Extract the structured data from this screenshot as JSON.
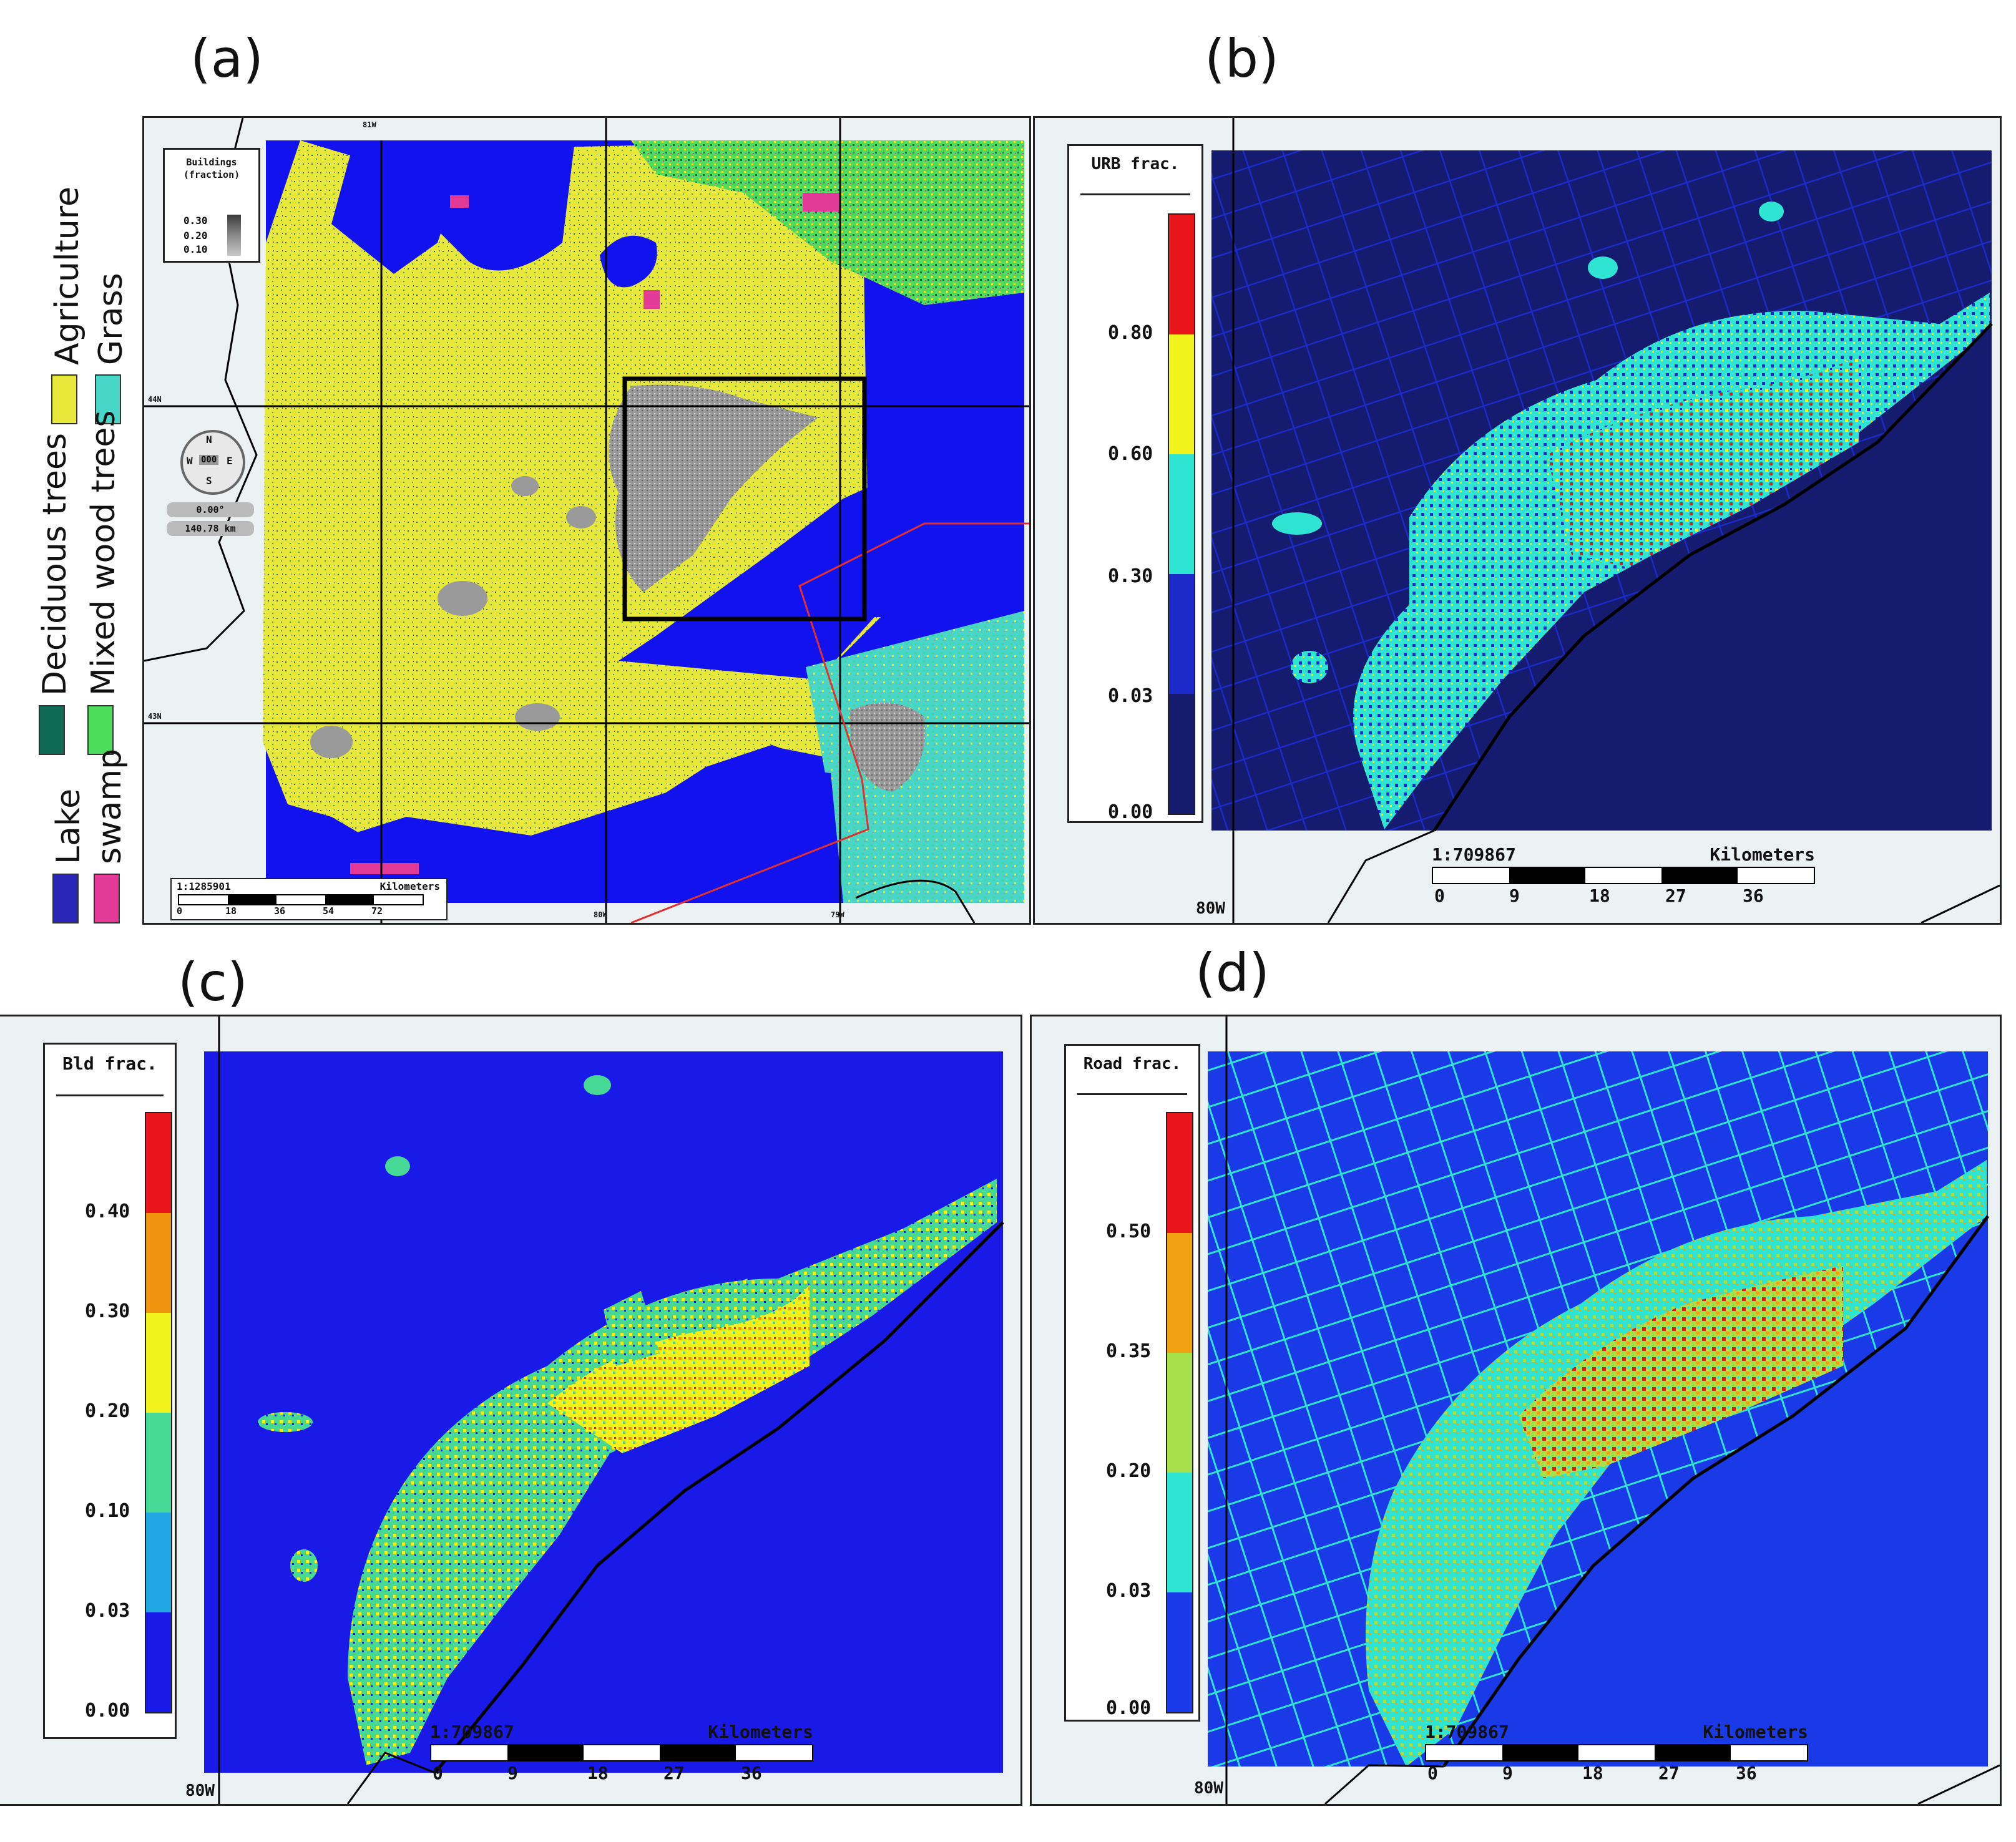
{
  "panels": {
    "a": {
      "label": "(a)",
      "legend_title": "Buildings (fraction)",
      "building_ticks": [
        "0.30",
        "0.20",
        "0.10"
      ],
      "compass": {
        "n": "N",
        "s": "S",
        "e": "E",
        "w": "W",
        "center": "000",
        "angle": "0.00°",
        "distance": "140.78 km"
      },
      "scale": {
        "ratio": "1:1285901",
        "unit": "Kilometers",
        "ticks": [
          "0",
          "18",
          "36",
          "54",
          "72"
        ]
      },
      "lat_labels": [
        "44N",
        "43N"
      ],
      "lon_labels": [
        "81W",
        "80W",
        "79W"
      ],
      "landcover": [
        {
          "name": "Agriculture",
          "color": "#e8e83a"
        },
        {
          "name": "Grass",
          "color": "#48d6c8"
        },
        {
          "name": "Deciduous trees",
          "color": "#0e6a55"
        },
        {
          "name": "Mixed wood trees",
          "color": "#4ddc5b"
        },
        {
          "name": "Lake",
          "color": "#2a26b8"
        },
        {
          "name": "swamp",
          "color": "#e23a96"
        }
      ]
    },
    "b": {
      "label": "(b)",
      "legend_title": "URB frac.",
      "ticks": [
        "0.80",
        "0.60",
        "0.30",
        "0.03",
        "0.00"
      ],
      "colors": [
        "#e8151b",
        "#f2f21c",
        "#2ee5d4",
        "#1b2ac9",
        "#151b6e"
      ],
      "scale": {
        "ratio": "1:709867",
        "unit": "Kilometers",
        "ticks": [
          "0",
          "9",
          "18",
          "27",
          "36"
        ]
      },
      "lon_label": "80W"
    },
    "c": {
      "label": "(c)",
      "legend_title": "Bld frac.",
      "ticks": [
        "0.40",
        "0.30",
        "0.20",
        "0.10",
        "0.03",
        "0.00"
      ],
      "colors": [
        "#e8151b",
        "#f09410",
        "#f2f21c",
        "#46d996",
        "#21a7e3",
        "#1a1ae8"
      ],
      "scale": {
        "ratio": "1:709867",
        "unit": "Kilometers",
        "ticks": [
          "0",
          "9",
          "18",
          "27",
          "36"
        ]
      },
      "lon_label": "80W"
    },
    "d": {
      "label": "(d)",
      "legend_title": "Road frac.",
      "ticks": [
        "0.50",
        "0.35",
        "0.20",
        "0.03",
        "0.00"
      ],
      "colors": [
        "#e8151b",
        "#f0a010",
        "#a6e04a",
        "#2ee5d4",
        "#1a3ae8"
      ],
      "scale": {
        "ratio": "1:709867",
        "unit": "Kilometers",
        "ticks": [
          "0",
          "9",
          "18",
          "27",
          "36"
        ]
      },
      "lon_label": "80W"
    }
  }
}
